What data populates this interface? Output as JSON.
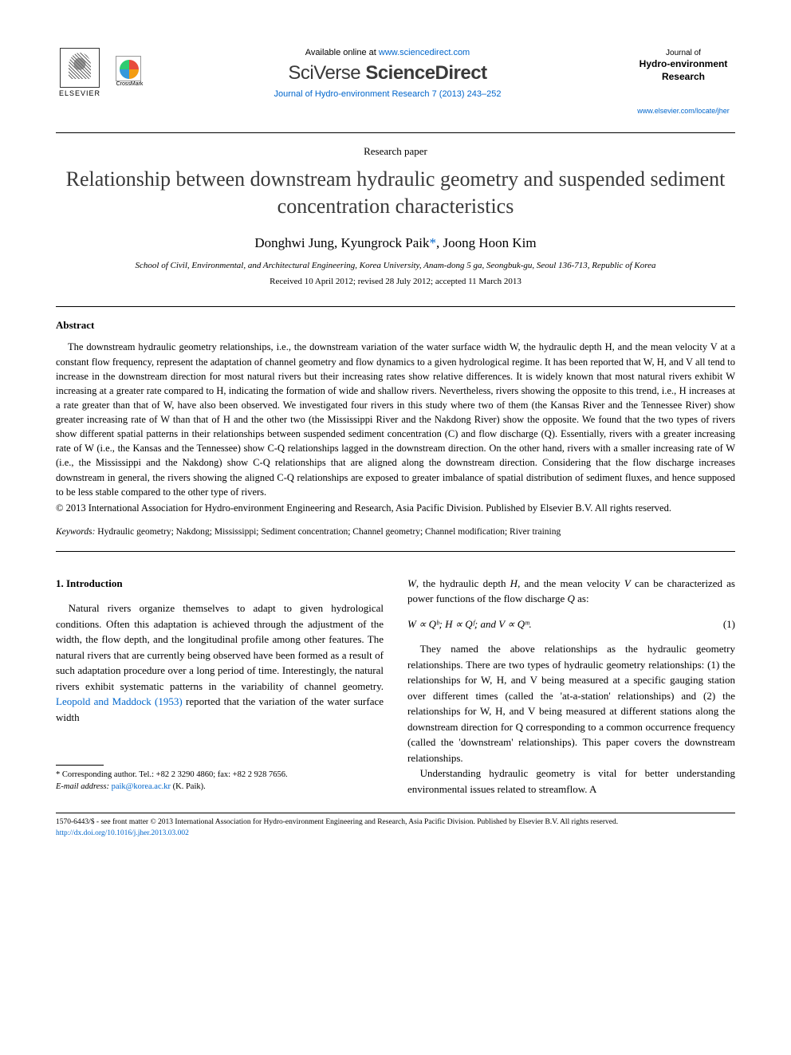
{
  "header": {
    "elsevier_label": "ELSEVIER",
    "crossmark_label": "CrossMark",
    "available_prefix": "Available online at ",
    "available_url": "www.sciencedirect.com",
    "banner_sciverse": "SciVerse ",
    "banner_sd": "ScienceDirect",
    "citation": "Journal of Hydro-environment Research 7 (2013) 243–252",
    "journal_small": "Journal of",
    "journal_bold1": "Hydro-environment",
    "journal_bold2": "Research",
    "journal_url": "www.elsevier.com/locate/jher"
  },
  "meta": {
    "paper_type": "Research paper",
    "title": "Relationship between downstream hydraulic geometry and suspended sediment concentration characteristics",
    "authors_pre": "Donghwi Jung, Kyungrock Paik",
    "author_mark": "*",
    "authors_post": ", Joong Hoon Kim",
    "affiliation": "School of Civil, Environmental, and Architectural Engineering, Korea University, Anam-dong 5 ga, Seongbuk-gu, Seoul 136-713, Republic of Korea",
    "dates": "Received 10 April 2012; revised 28 July 2012; accepted 11 March 2013"
  },
  "abstract": {
    "heading": "Abstract",
    "text": "The downstream hydraulic geometry relationships, i.e., the downstream variation of the water surface width W, the hydraulic depth H, and the mean velocity V at a constant flow frequency, represent the adaptation of channel geometry and flow dynamics to a given hydrological regime. It has been reported that W, H, and V all tend to increase in the downstream direction for most natural rivers but their increasing rates show relative differences. It is widely known that most natural rivers exhibit W increasing at a greater rate compared to H, indicating the formation of wide and shallow rivers. Nevertheless, rivers showing the opposite to this trend, i.e., H increases at a rate greater than that of W, have also been observed. We investigated four rivers in this study where two of them (the Kansas River and the Tennessee River) show greater increasing rate of W than that of H and the other two (the Mississippi River and the Nakdong River) show the opposite. We found that the two types of rivers show different spatial patterns in their relationships between suspended sediment concentration (C) and flow discharge (Q). Essentially, rivers with a greater increasing rate of W (i.e., the Kansas and the Tennessee) show C-Q relationships lagged in the downstream direction. On the other hand, rivers with a smaller increasing rate of W (i.e., the Mississippi and the Nakdong) show C-Q relationships that are aligned along the downstream direction. Considering that the flow discharge increases downstream in general, the rivers showing the aligned C-Q relationships are exposed to greater imbalance of spatial distribution of sediment fluxes, and hence supposed to be less stable compared to the other type of rivers.",
    "copyright": "© 2013 International Association for Hydro-environment Engineering and Research, Asia Pacific Division. Published by Elsevier B.V. All rights reserved.",
    "keywords_label": "Keywords:",
    "keywords_text": " Hydraulic geometry; Nakdong; Mississippi; Sediment concentration; Channel geometry; Channel modification; River training"
  },
  "body": {
    "section1_heading": "1. Introduction",
    "col1_p1a": "Natural rivers organize themselves to adapt to given hydrological conditions. Often this adaptation is achieved through the adjustment of the width, the flow depth, and the longitudinal profile among other features. The natural rivers that are currently being observed have been formed as a result of such adaptation procedure over a long period of time. Interestingly, the natural rivers exhibit systematic patterns in the variability of channel geometry. ",
    "col1_ref": "Leopold and Maddock (1953)",
    "col1_p1b": " reported that the variation of the water surface width",
    "col2_p1": "W, the hydraulic depth H, and the mean velocity V can be characterized as power functions of the flow discharge Q as:",
    "equation": "W ∝ Qᵇ; H ∝ Qᶠ; and V ∝ Qᵐ.",
    "eq_num": "(1)",
    "col2_p2": "They named the above relationships as the hydraulic geometry relationships. There are two types of hydraulic geometry relationships: (1) the relationships for W, H, and V being measured at a specific gauging station over different times (called the 'at-a-station' relationships) and (2) the relationships for W, H, and V being measured at different stations along the downstream direction for Q corresponding to a common occurrence frequency (called the 'downstream' relationships). This paper covers the downstream relationships.",
    "col2_p3": "Understanding hydraulic geometry is vital for better understanding environmental issues related to streamflow. A"
  },
  "footnote": {
    "corr": "* Corresponding author. Tel.: +82 2 3290 4860; fax: +82 2 928 7656.",
    "email_label": "E-mail address: ",
    "email": "paik@korea.ac.kr",
    "email_who": " (K. Paik)."
  },
  "footer": {
    "line1": "1570-6443/$ - see front matter © 2013 International Association for Hydro-environment Engineering and Research, Asia Pacific Division. Published by Elsevier B.V. All rights reserved.",
    "doi": "http://dx.doi.org/10.1016/j.jher.2013.03.002"
  },
  "colors": {
    "link": "#0066cc",
    "text": "#000000",
    "title": "#3a3a3a"
  },
  "typography": {
    "body_pt": 13,
    "title_pt": 26,
    "abstract_pt": 12.5,
    "footnote_pt": 10.5,
    "footer_pt": 9.5
  }
}
